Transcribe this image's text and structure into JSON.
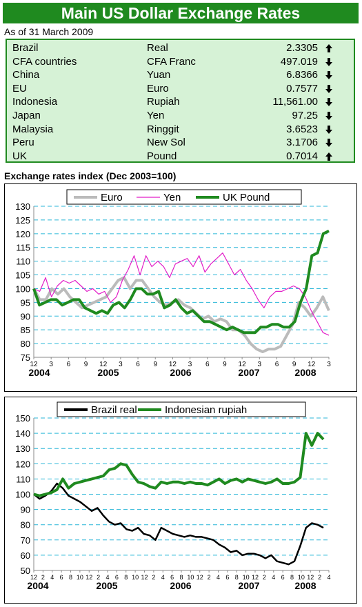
{
  "header": {
    "title": "Main US Dollar Exchange Rates",
    "as_of": "As of 31 March 2009"
  },
  "rates": [
    {
      "country": "Brazil",
      "currency": "Real",
      "value": "2.3305",
      "direction": "up"
    },
    {
      "country": "CFA countries",
      "currency": "CFA Franc",
      "value": "497.019",
      "direction": "down"
    },
    {
      "country": "China",
      "currency": "Yuan",
      "value": "6.8366",
      "direction": "down"
    },
    {
      "country": "EU",
      "currency": "Euro",
      "value": "0.7577",
      "direction": "down"
    },
    {
      "country": "Indonesia",
      "currency": "Rupiah",
      "value": "11,561.00",
      "direction": "down"
    },
    {
      "country": "Japan",
      "currency": "Yen",
      "value": "97.25",
      "direction": "down"
    },
    {
      "country": "Malaysia",
      "currency": "Ringgit",
      "value": "3.6523",
      "direction": "down"
    },
    {
      "country": "Peru",
      "currency": "New Sol",
      "value": "3.1706",
      "direction": "down"
    },
    {
      "country": "UK",
      "currency": "Pound",
      "value": "0.7014",
      "direction": "up"
    }
  ],
  "section_title": "Exchange rates index (Dec 2003=100)",
  "chart_data": [
    {
      "type": "line",
      "ylim": [
        75,
        130
      ],
      "yticks": [
        75,
        80,
        85,
        90,
        95,
        100,
        105,
        110,
        115,
        120,
        125,
        130
      ],
      "grid": "horizontal dashed",
      "legend_position": "top",
      "month_tick_labels": [
        "12",
        "3",
        "6",
        "9",
        "12",
        "3",
        "6",
        "9",
        "12",
        "3",
        "6",
        "9",
        "12",
        "3",
        "6",
        "9",
        "12",
        "3"
      ],
      "year_labels": [
        "2004",
        "2005",
        "2006",
        "2007",
        "2008"
      ],
      "series": [
        {
          "name": "Euro",
          "color": "#bbbbbb",
          "values": [
            100,
            96,
            96,
            100,
            98,
            100,
            97,
            95,
            93,
            94,
            95,
            96,
            97,
            100,
            103,
            104,
            100,
            103,
            103,
            100,
            97,
            95,
            94,
            95,
            96,
            94,
            93,
            91,
            89,
            90,
            88,
            89,
            88,
            85,
            85,
            83,
            80,
            78,
            77,
            78,
            78,
            79,
            83,
            87,
            95,
            93,
            90,
            93,
            97,
            92
          ]
        },
        {
          "name": "Yen",
          "color": "#e21ec8",
          "values": [
            100,
            99,
            104,
            97,
            101,
            103,
            102,
            103,
            101,
            99,
            100,
            98,
            99,
            95,
            97,
            103,
            107,
            112,
            105,
            112,
            108,
            110,
            108,
            104,
            109,
            110,
            111,
            108,
            112,
            106,
            109,
            111,
            113,
            109,
            105,
            107,
            103,
            100,
            96,
            93,
            97,
            99,
            99,
            100,
            101,
            100,
            97,
            92,
            88,
            84,
            83
          ]
        },
        {
          "name": "UK Pound",
          "color": "#1f8a1f",
          "values": [
            100,
            94,
            95,
            96,
            96,
            94,
            95,
            96,
            96,
            93,
            92,
            91,
            92,
            91,
            94,
            95,
            93,
            96,
            100,
            100,
            98,
            98,
            99,
            93,
            94,
            96,
            93,
            91,
            92,
            90,
            88,
            88,
            87,
            86,
            85,
            86,
            85,
            84,
            84,
            84,
            86,
            86,
            87,
            87,
            86,
            86,
            88,
            95,
            100,
            112,
            113,
            120,
            121
          ]
        }
      ]
    },
    {
      "type": "line",
      "ylim": [
        50,
        150
      ],
      "yticks": [
        50,
        60,
        70,
        80,
        90,
        100,
        110,
        120,
        130,
        140,
        150
      ],
      "grid": "horizontal dashed",
      "legend_position": "top",
      "month_tick_labels": [
        "12",
        "2",
        "4",
        "6",
        "8",
        "10",
        "12",
        "2",
        "4",
        "6",
        "8",
        "10",
        "12",
        "2",
        "4",
        "6",
        "8",
        "10",
        "12",
        "2",
        "4",
        "6",
        "8",
        "10",
        "12",
        "2",
        "4",
        "6",
        "8",
        "10",
        "12",
        "2",
        "4"
      ],
      "year_labels": [
        "2004",
        "2005",
        "2006",
        "2007",
        "2008"
      ],
      "series": [
        {
          "name": "Brazil real",
          "color": "#000000",
          "values": [
            100,
            97,
            99,
            102,
            107,
            104,
            99,
            97,
            95,
            92,
            89,
            91,
            86,
            82,
            80,
            81,
            77,
            76,
            78,
            74,
            73,
            70,
            78,
            76,
            74,
            73,
            72,
            73,
            72,
            72,
            71,
            70,
            67,
            65,
            62,
            63,
            60,
            61,
            61,
            60,
            58,
            60,
            56,
            55,
            54,
            56,
            66,
            78,
            81,
            80,
            78
          ]
        },
        {
          "name": "Indonesian rupiah",
          "color": "#1f8a1f",
          "values": [
            100,
            99,
            100,
            101,
            103,
            110,
            104,
            107,
            108,
            109,
            110,
            111,
            112,
            116,
            117,
            120,
            119,
            113,
            108,
            107,
            105,
            104,
            108,
            107,
            108,
            108,
            107,
            108,
            107,
            107,
            106,
            108,
            110,
            107,
            109,
            110,
            108,
            110,
            109,
            108,
            107,
            108,
            110,
            107,
            107,
            108,
            111,
            140,
            132,
            140,
            136
          ]
        }
      ]
    }
  ]
}
